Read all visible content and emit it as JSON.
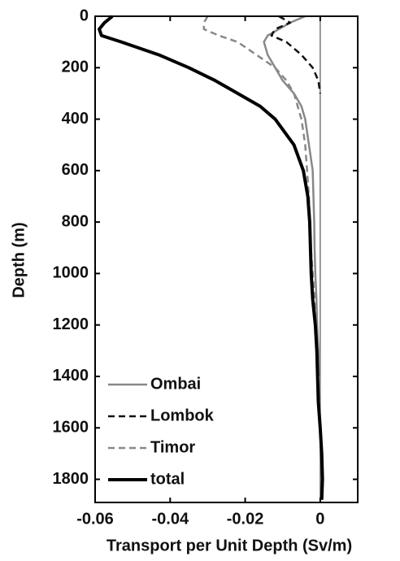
{
  "chart_data": {
    "type": "line",
    "xlabel": "Transport per Unit Depth (Sv/m)",
    "ylabel": "Depth (m)",
    "y": [
      0,
      25,
      50,
      75,
      100,
      150,
      200,
      250,
      300,
      350,
      400,
      500,
      600,
      700,
      800,
      900,
      1000,
      1100,
      1200,
      1300,
      1400,
      1500,
      1600,
      1700,
      1800,
      1880
    ],
    "xlim": [
      -0.06,
      0.01
    ],
    "xticks": [
      -0.06,
      -0.04,
      -0.02,
      0
    ],
    "ylim": [
      0,
      1890
    ],
    "yticks": [
      0,
      200,
      400,
      600,
      800,
      1000,
      1200,
      1400,
      1600,
      1800
    ],
    "y_inverted": true,
    "legend": "lower left",
    "series": [
      {
        "name": "Ombai",
        "color": "#888888",
        "linestyle": "solid",
        "linewidth": 2.5,
        "values": [
          -0.004,
          -0.008,
          -0.011,
          -0.014,
          -0.015,
          -0.014,
          -0.012,
          -0.01,
          -0.007,
          -0.005,
          -0.004,
          -0.003,
          -0.002,
          -0.0018,
          -0.0016,
          -0.0015,
          -0.0013,
          -0.001,
          -0.0008,
          -0.0005,
          -0.0003,
          null,
          null,
          null,
          null,
          null
        ]
      },
      {
        "name": "Lombok",
        "color": "#111111",
        "linestyle": "dashed",
        "linewidth": 2.5,
        "values": [
          -0.011,
          -0.008,
          -0.012,
          -0.013,
          -0.009,
          -0.005,
          -0.002,
          -0.0005,
          0,
          null,
          null,
          null,
          null,
          null,
          null,
          null,
          null,
          null,
          null,
          null,
          null,
          null,
          null,
          null,
          null,
          null
        ]
      },
      {
        "name": "Timor",
        "color": "#888888",
        "linestyle": "dashed",
        "linewidth": 2.5,
        "values": [
          -0.03,
          -0.031,
          -0.031,
          -0.027,
          -0.022,
          -0.017,
          -0.012,
          -0.009,
          -0.007,
          -0.006,
          -0.005,
          -0.004,
          -0.0035,
          -0.003,
          -0.0028,
          -0.0025,
          -0.002,
          -0.0015,
          -0.001,
          null,
          null,
          null,
          null,
          null,
          null,
          null
        ]
      },
      {
        "name": "total",
        "color": "#000000",
        "linestyle": "solid",
        "linewidth": 4,
        "values": [
          -0.0554,
          -0.0575,
          -0.0589,
          -0.0583,
          -0.053,
          -0.043,
          -0.035,
          -0.028,
          -0.022,
          -0.016,
          -0.012,
          -0.007,
          -0.0045,
          -0.0033,
          -0.0028,
          -0.0026,
          -0.0024,
          -0.002,
          -0.0013,
          -0.0009,
          -0.0007,
          -0.0005,
          0,
          0.0004,
          0.0006,
          0.0004
        ]
      }
    ]
  }
}
